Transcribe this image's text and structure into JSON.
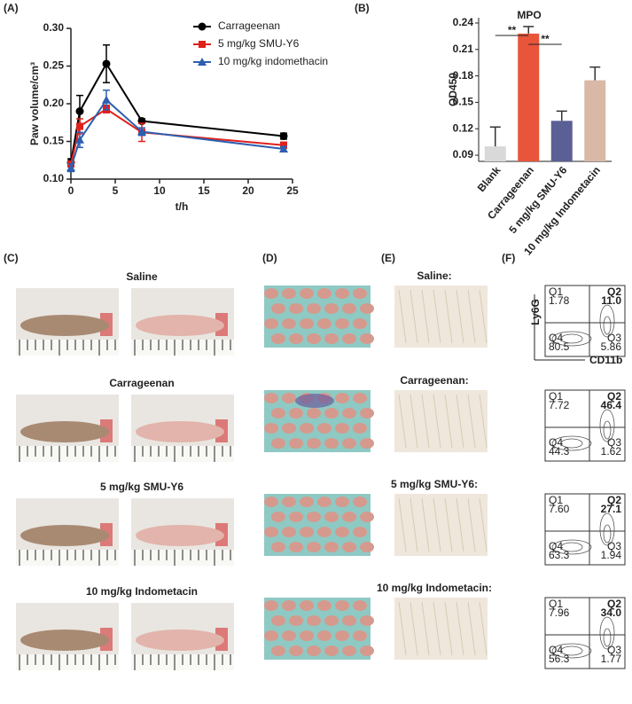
{
  "panel_labels": [
    "(A)",
    "(B)",
    "(C)",
    "(D)",
    "(E)",
    "(F)"
  ],
  "chart_data": [
    {
      "type": "line",
      "xlabel": "t/h",
      "ylabel": "Paw volume/cm³",
      "x": [
        0,
        1,
        4,
        8,
        24
      ],
      "xlim": [
        0,
        25
      ],
      "xticks": [
        0,
        5,
        10,
        15,
        20,
        25
      ],
      "ylim": [
        0.1,
        0.3
      ],
      "yticks": [
        {
          "value": 0.1,
          "label": "0.10"
        },
        0.15,
        {
          "value": 0.2,
          "label": "0.20"
        },
        0.25,
        {
          "value": 0.3,
          "label": "0.30"
        }
      ],
      "legend": "upper right",
      "series": [
        {
          "name": "Carrageenan",
          "color": "#000000",
          "marker": "circle",
          "values": [
            0.122,
            0.19,
            0.253,
            0.177,
            0.157
          ],
          "errors": [
            0.005,
            0.021,
            0.025,
            0.003,
            0.004
          ]
        },
        {
          "name": "5 mg/kg SMU-Y6",
          "color": "#e0201b",
          "marker": "square",
          "values": [
            0.12,
            0.17,
            0.193,
            0.162,
            0.145
          ],
          "errors": [
            0.003,
            0.01,
            0.005,
            0.012,
            0.004
          ]
        },
        {
          "name": "10 mg/kg indomethacin",
          "color": "#2d5fb0",
          "marker": "triangle",
          "values": [
            0.115,
            0.152,
            0.205,
            0.163,
            0.14
          ],
          "errors": [
            0.005,
            0.01,
            0.013,
            0.005,
            0.003
          ]
        }
      ]
    },
    {
      "type": "bar",
      "title": "MPO",
      "ylabel": "OD450",
      "categories": [
        "Blank",
        "Carrageenan",
        "5 mg/kg SMU-Y6",
        "10 mg/kg Indometacin"
      ],
      "values": [
        0.1,
        0.228,
        0.129,
        0.175
      ],
      "errors": [
        0.022,
        0.008,
        0.011,
        0.015
      ],
      "colors": [
        "#d9d9d9",
        "#e8553a",
        "#5a5f96",
        "#d9b8a6"
      ],
      "ylim": [
        0.083,
        0.246
      ],
      "yticks": [
        0.09,
        0.12,
        0.15,
        0.18,
        0.21,
        0.24
      ],
      "annotations": [
        {
          "text": "**",
          "between": [
            0,
            1
          ]
        },
        {
          "text": "**",
          "between": [
            1,
            2
          ]
        }
      ]
    }
  ],
  "photos": {
    "groups": [
      "Saline",
      "Carrageenan",
      "5 mg/kg SMU-Y6",
      "10 mg/kg Indometacin"
    ]
  },
  "histology": {
    "groups": [
      "Saline:",
      "Carrageenan:",
      "5 mg/kg SMU-Y6:",
      "10 mg/kg Indometacin:"
    ]
  },
  "flow": {
    "x_label": "CD11b",
    "y_label": "Ly6G",
    "plots": [
      [
        {
          "name": "Q1",
          "value": "1.78"
        },
        {
          "name": "Q2",
          "value": "11.0"
        },
        {
          "name": "Q3",
          "value": "5.86"
        },
        {
          "name": "Q4",
          "value": "80.5"
        }
      ],
      [
        {
          "name": "Q1",
          "value": "7.72"
        },
        {
          "name": "Q2",
          "value": "46.4"
        },
        {
          "name": "Q3",
          "value": "1.62"
        },
        {
          "name": "Q4",
          "value": "44.3"
        }
      ],
      [
        {
          "name": "Q1",
          "value": "7.60"
        },
        {
          "name": "Q2",
          "value": "27.1"
        },
        {
          "name": "Q3",
          "value": "1.94"
        },
        {
          "name": "Q4",
          "value": "63.3"
        }
      ],
      [
        {
          "name": "Q1",
          "value": "7.96"
        },
        {
          "name": "Q2",
          "value": "34.0"
        },
        {
          "name": "Q3",
          "value": "1.77"
        },
        {
          "name": "Q4",
          "value": "56.3"
        }
      ]
    ]
  }
}
